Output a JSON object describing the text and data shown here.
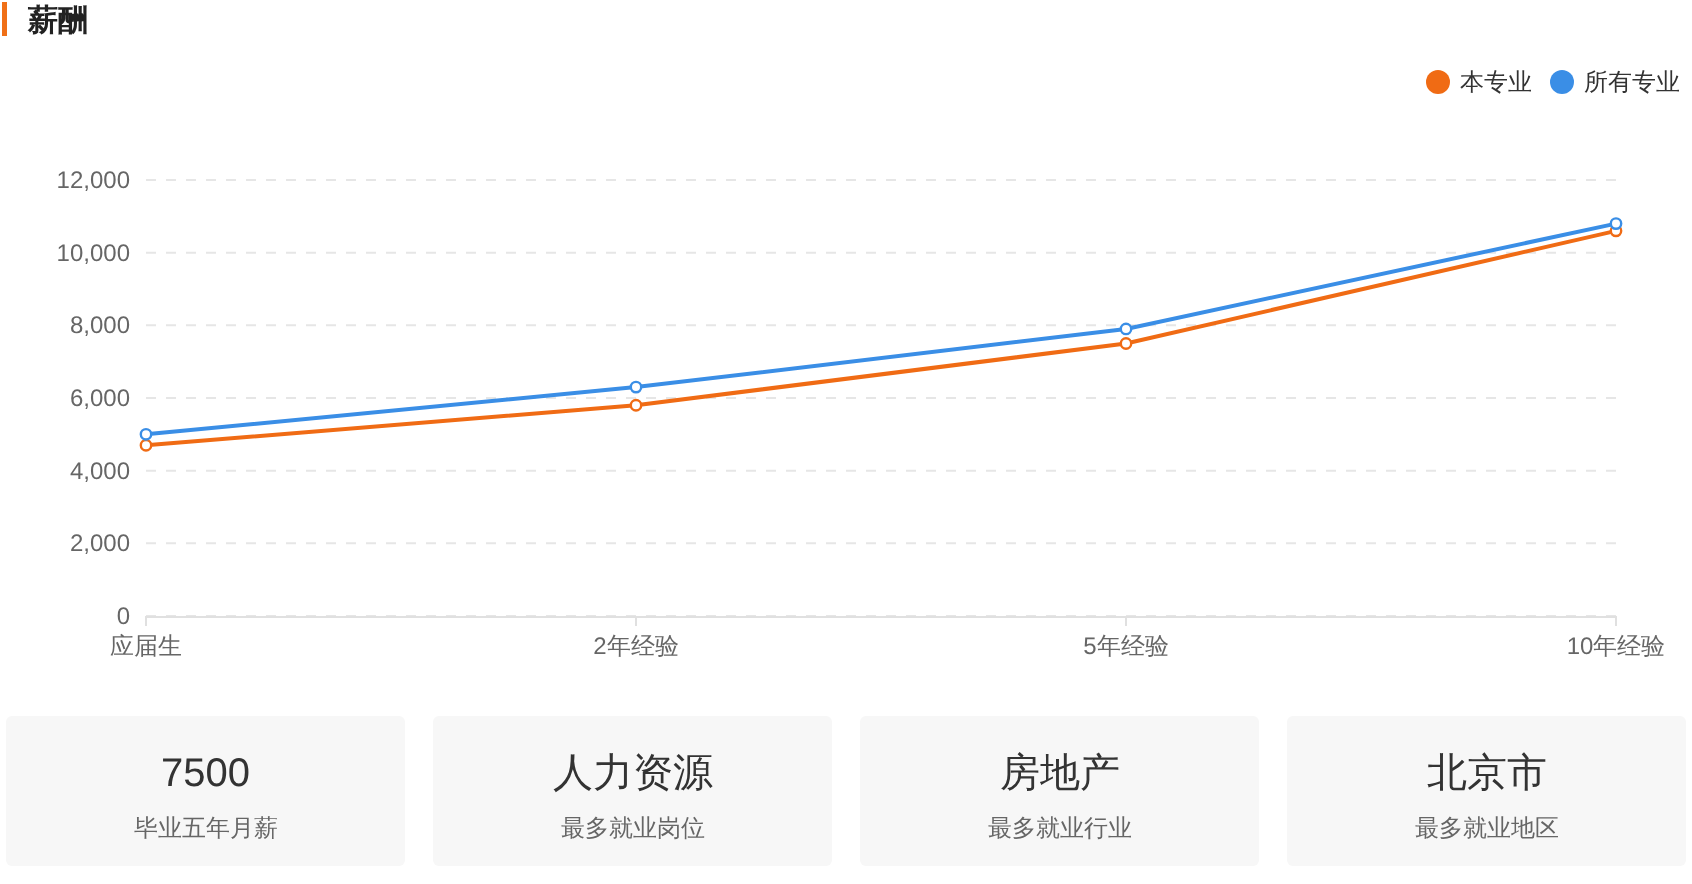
{
  "chart_data": [
    {
      "type": "line",
      "title": "薪酬",
      "categories": [
        "应届生",
        "2年经验",
        "5年经验",
        "10年经验"
      ],
      "series": [
        {
          "name": "本专业",
          "color": "#f06b14",
          "values": [
            4700,
            5800,
            7500,
            10600
          ]
        },
        {
          "name": "所有专业",
          "color": "#3a8ee6",
          "values": [
            5000,
            6300,
            7900,
            10800
          ]
        }
      ],
      "ylim": [
        0,
        12000
      ],
      "yticks": [
        0,
        {
          "value": 2000,
          "label": "2,000"
        },
        {
          "value": 4000,
          "label": "4,000"
        },
        {
          "value": 6000,
          "label": "6,000"
        },
        {
          "value": 8000,
          "label": "8,000"
        },
        {
          "value": 10000,
          "label": "10,000"
        },
        {
          "value": 12000,
          "label": "12,000"
        }
      ],
      "grid": "y",
      "legend": "top right",
      "marker": "circle",
      "line_style": "solid"
    },
    {
      "type": "other",
      "title": "7500",
      "subtitle": "毕业五年月薪"
    },
    {
      "type": "other",
      "title": "人力资源",
      "subtitle": "最多就业岗位"
    },
    {
      "type": "other",
      "title": "房地产",
      "subtitle": "最多就业行业"
    },
    {
      "type": "other",
      "title": "北京市",
      "subtitle": "最多就业地区"
    }
  ]
}
